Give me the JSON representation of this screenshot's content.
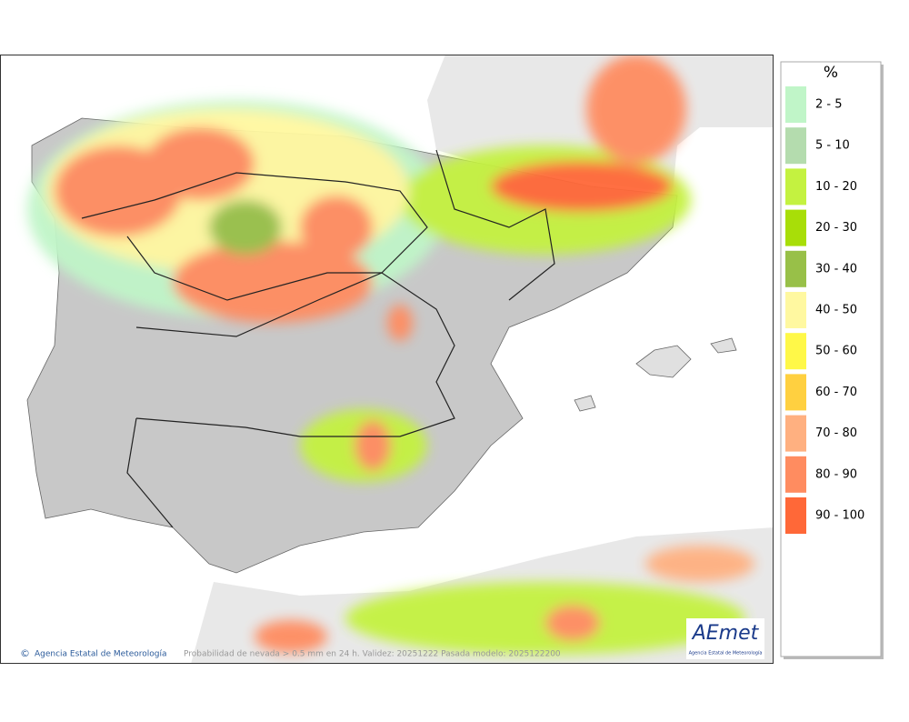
{
  "map": {
    "legend": {
      "title": "%",
      "items": [
        {
          "label": "2 - 5",
          "color": "#c0f5c8"
        },
        {
          "label": "5 - 10",
          "color": "#b4dcae"
        },
        {
          "label": "10 - 20",
          "color": "#c4f240"
        },
        {
          "label": "20 - 30",
          "color": "#a8de08"
        },
        {
          "label": "30 - 40",
          "color": "#98c048"
        },
        {
          "label": "40 - 50",
          "color": "#fff8a0"
        },
        {
          "label": "50 - 60",
          "color": "#fff848"
        },
        {
          "label": "60 - 70",
          "color": "#ffd040"
        },
        {
          "label": "70 - 80",
          "color": "#ffb080"
        },
        {
          "label": "80 - 90",
          "color": "#ff8c60"
        },
        {
          "label": "90 - 100",
          "color": "#ff6838"
        }
      ]
    },
    "footer": {
      "agency": "Agencia Estatal de Meteorología",
      "caption": "Probabilidad de nevada > 0.5 mm en 24 h. Validez: 20251222 Pasada modelo: 2025122200"
    },
    "logo": {
      "name": "AEmet",
      "subtitle": "Agencia Estatal de Meteorología"
    }
  }
}
